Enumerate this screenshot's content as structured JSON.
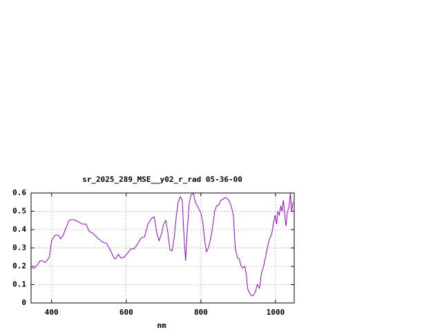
{
  "chart_data": {
    "type": "line",
    "title": "sr_2025_289_MSE__y02_r_rad 05-36-00",
    "x_label": "nm",
    "x": [
      345,
      354,
      363,
      369,
      376,
      382,
      387,
      394,
      400,
      409,
      418,
      424,
      431,
      439,
      446,
      455,
      465,
      474,
      483,
      492,
      501,
      511,
      520,
      529,
      538,
      547,
      557,
      566,
      571,
      579,
      586,
      594,
      603,
      612,
      621,
      630,
      640,
      649,
      658,
      667,
      675,
      682,
      688,
      695,
      700,
      706,
      711,
      717,
      723,
      728,
      734,
      739,
      745,
      750,
      754,
      759,
      763,
      769,
      774,
      780,
      785,
      793,
      800,
      805,
      811,
      815,
      820,
      826,
      831,
      837,
      842,
      848,
      853,
      859,
      864,
      870,
      875,
      881,
      887,
      892,
      898,
      903,
      907,
      912,
      918,
      922,
      925,
      929,
      935,
      940,
      946,
      951,
      957,
      962,
      968,
      973,
      979,
      984,
      990,
      995,
      999,
      1003,
      1006,
      1010,
      1014,
      1017,
      1021,
      1025,
      1028,
      1032,
      1036,
      1040,
      1043,
      1047
    ],
    "series": [
      {
        "color": "#9400d3",
        "values": [
          0.19,
          0.19,
          0.21,
          0.23,
          0.23,
          0.22,
          0.23,
          0.25,
          0.34,
          0.37,
          0.37,
          0.35,
          0.37,
          0.41,
          0.45,
          0.455,
          0.45,
          0.44,
          0.43,
          0.43,
          0.39,
          0.38,
          0.36,
          0.345,
          0.33,
          0.325,
          0.29,
          0.25,
          0.24,
          0.265,
          0.245,
          0.25,
          0.27,
          0.295,
          0.295,
          0.32,
          0.355,
          0.36,
          0.43,
          0.46,
          0.47,
          0.38,
          0.34,
          0.38,
          0.43,
          0.45,
          0.39,
          0.29,
          0.285,
          0.35,
          0.47,
          0.55,
          0.58,
          0.56,
          0.39,
          0.23,
          0.38,
          0.55,
          0.59,
          0.6,
          0.55,
          0.52,
          0.49,
          0.44,
          0.33,
          0.28,
          0.3,
          0.35,
          0.41,
          0.5,
          0.53,
          0.535,
          0.56,
          0.565,
          0.575,
          0.57,
          0.56,
          0.53,
          0.48,
          0.3,
          0.245,
          0.24,
          0.205,
          0.19,
          0.2,
          0.15,
          0.08,
          0.06,
          0.04,
          0.04,
          0.06,
          0.1,
          0.08,
          0.16,
          0.2,
          0.25,
          0.31,
          0.35,
          0.38,
          0.44,
          0.48,
          0.43,
          0.5,
          0.48,
          0.53,
          0.5,
          0.56,
          0.47,
          0.42,
          0.5,
          0.52,
          0.6,
          0.5,
          0.55
        ]
      }
    ],
    "xlim": [
      345,
      1050
    ],
    "xticks": [
      400,
      600,
      800,
      1000
    ],
    "ylim": [
      0,
      0.6
    ],
    "yticks": [
      0,
      0.1,
      0.2,
      0.3,
      0.4,
      0.5,
      0.6
    ],
    "grid": true
  }
}
